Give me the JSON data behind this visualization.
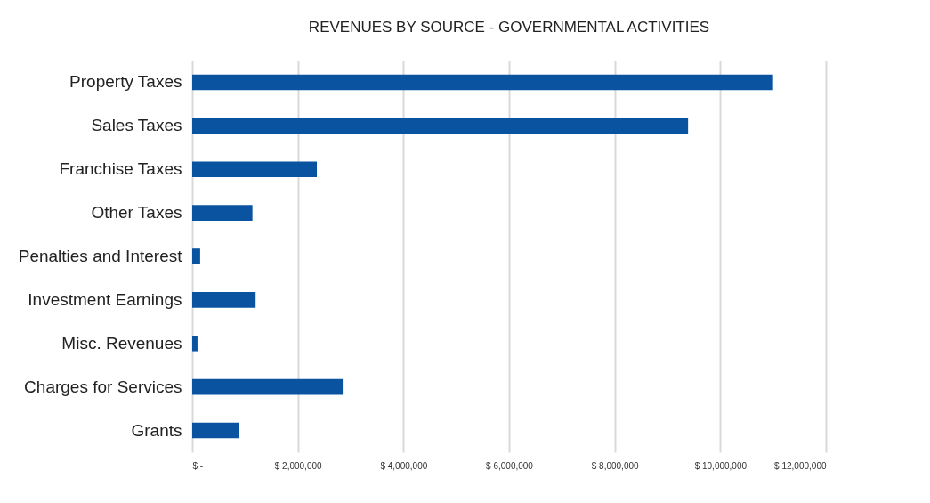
{
  "chart_data": {
    "type": "bar",
    "orientation": "horizontal",
    "title": "REVENUES  BY SOURCE - GOVERNMENTAL  ACTIVITIES",
    "categories": [
      "Property Taxes",
      "Sales Taxes",
      "Franchise Taxes",
      "Other Taxes",
      "Penalties and Interest",
      "Investment Earnings",
      "Misc. Revenues",
      "Charges for Services",
      "Grants"
    ],
    "values": [
      11000000,
      9390000,
      2360000,
      1140000,
      150000,
      1200000,
      100000,
      2850000,
      880000
    ],
    "color": "#0a53a0",
    "xlim": [
      0,
      12000000
    ],
    "xticks": [
      {
        "value": 0,
        "label": "$ -"
      },
      {
        "value": 2000000,
        "label": "$ 2,000,000"
      },
      {
        "value": 4000000,
        "label": "$ 4,000,000"
      },
      {
        "value": 6000000,
        "label": "$ 6,000,000"
      },
      {
        "value": 8000000,
        "label": "$ 8,000,000"
      },
      {
        "value": 10000000,
        "label": "$ 10,000,000"
      },
      {
        "value": 12000000,
        "label": "$ 12,000,000"
      }
    ],
    "grid": "x"
  }
}
